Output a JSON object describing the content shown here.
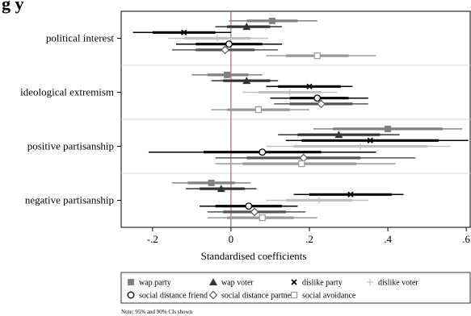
{
  "header_fragment": "g    y",
  "chart_data": {
    "type": "scatter",
    "title": "",
    "xlabel": "Standardised coefficients",
    "ylabel": "",
    "xlim": [
      -0.28,
      0.61
    ],
    "xticks": [
      -0.2,
      0,
      0.2,
      0.4,
      0.6
    ],
    "xtick_labels": [
      "-.2",
      "0",
      ".2",
      ".4",
      ".6"
    ],
    "reference_line": 0,
    "grid": false,
    "legend_position": "bottom",
    "categories": [
      "political interest",
      "ideological extremism",
      "positive partisanship",
      "negative partisanship"
    ],
    "series": [
      {
        "name": "wap party",
        "marker": "square",
        "color": "#808080",
        "points": [
          {
            "category": "political interest",
            "value": 0.105,
            "ci90": [
              0.04,
              0.17
            ],
            "ci95": [
              -0.005,
              0.22
            ]
          },
          {
            "category": "ideological extremism",
            "value": -0.01,
            "ci90": [
              -0.06,
              0.045
            ],
            "ci95": [
              -0.1,
              0.08
            ]
          },
          {
            "category": "positive partisanship",
            "value": 0.4,
            "ci90": [
              0.26,
              0.54
            ],
            "ci95": [
              0.21,
              0.59
            ]
          },
          {
            "category": "negative partisanship",
            "value": -0.05,
            "ci90": [
              -0.11,
              0.01
            ],
            "ci95": [
              -0.15,
              0.05
            ]
          }
        ]
      },
      {
        "name": "wap voter",
        "marker": "triangle",
        "color": "#333333",
        "points": [
          {
            "category": "political interest",
            "value": 0.04,
            "ci90": [
              -0.01,
              0.1
            ],
            "ci95": [
              -0.04,
              0.13
            ]
          },
          {
            "category": "ideological extremism",
            "value": 0.04,
            "ci90": [
              -0.02,
              0.1
            ],
            "ci95": [
              -0.05,
              0.12
            ]
          },
          {
            "category": "positive partisanship",
            "value": 0.275,
            "ci90": [
              0.17,
              0.38
            ],
            "ci95": [
              0.12,
              0.43
            ]
          },
          {
            "category": "negative partisanship",
            "value": -0.025,
            "ci90": [
              -0.08,
              0.035
            ],
            "ci95": [
              -0.115,
              0.065
            ]
          }
        ]
      },
      {
        "name": "dislike party",
        "marker": "x",
        "color": "#000000",
        "points": [
          {
            "category": "political interest",
            "value": -0.12,
            "ci90": [
              -0.2,
              -0.04
            ],
            "ci95": [
              -0.25,
              0.0
            ]
          },
          {
            "category": "ideological extremism",
            "value": 0.2,
            "ci90": [
              0.12,
              0.28
            ],
            "ci95": [
              0.09,
              0.31
            ]
          },
          {
            "category": "positive partisanship",
            "value": 0.355,
            "ci90": [
              0.18,
              0.53
            ],
            "ci95": [
              0.14,
              0.605
            ]
          },
          {
            "category": "negative partisanship",
            "value": 0.305,
            "ci90": [
              0.2,
              0.41
            ],
            "ci95": [
              0.16,
              0.44
            ]
          }
        ]
      },
      {
        "name": "dislike voter",
        "marker": "plus",
        "color": "#c0c0c0",
        "points": [
          {
            "category": "political interest",
            "value": -0.035,
            "ci90": [
              -0.12,
              0.05
            ],
            "ci95": [
              -0.16,
              0.095
            ]
          },
          {
            "category": "ideological extremism",
            "value": 0.15,
            "ci90": [
              0.07,
              0.23
            ],
            "ci95": [
              0.03,
              0.27
            ]
          },
          {
            "category": "positive partisanship",
            "value": 0.33,
            "ci90": [
              0.16,
              0.5
            ],
            "ci95": [
              0.09,
              0.56
            ]
          },
          {
            "category": "negative partisanship",
            "value": 0.225,
            "ci90": [
              0.14,
              0.31
            ],
            "ci95": [
              0.09,
              0.35
            ]
          }
        ]
      },
      {
        "name": "social distance friend",
        "marker": "circle",
        "color": "#000000",
        "points": [
          {
            "category": "political interest",
            "value": -0.005,
            "ci90": [
              -0.09,
              0.08
            ],
            "ci95": [
              -0.14,
              0.13
            ]
          },
          {
            "category": "ideological extremism",
            "value": 0.22,
            "ci90": [
              0.15,
              0.3
            ],
            "ci95": [
              0.1,
              0.35
            ]
          },
          {
            "category": "positive partisanship",
            "value": 0.08,
            "ci90": [
              -0.07,
              0.23
            ],
            "ci95": [
              -0.21,
              0.37
            ]
          },
          {
            "category": "negative partisanship",
            "value": 0.045,
            "ci90": [
              -0.04,
              0.13
            ],
            "ci95": [
              -0.08,
              0.17
            ]
          }
        ]
      },
      {
        "name": "social distance partner",
        "marker": "diamond",
        "color": "#555555",
        "points": [
          {
            "category": "political interest",
            "value": -0.015,
            "ci90": [
              -0.09,
              0.06
            ],
            "ci95": [
              -0.15,
              0.12
            ]
          },
          {
            "category": "ideological extremism",
            "value": 0.23,
            "ci90": [
              0.15,
              0.31
            ],
            "ci95": [
              0.11,
              0.35
            ]
          },
          {
            "category": "positive partisanship",
            "value": 0.185,
            "ci90": [
              0.04,
              0.33
            ],
            "ci95": [
              -0.04,
              0.47
            ]
          },
          {
            "category": "negative partisanship",
            "value": 0.06,
            "ci90": [
              -0.02,
              0.14
            ],
            "ci95": [
              -0.06,
              0.19
            ]
          }
        ]
      },
      {
        "name": "social avoidance",
        "marker": "open-square",
        "color": "#999999",
        "points": [
          {
            "category": "political interest",
            "value": 0.22,
            "ci90": [
              0.14,
              0.3
            ],
            "ci95": [
              0.09,
              0.37
            ]
          },
          {
            "category": "ideological extremism",
            "value": 0.07,
            "ci90": [
              -0.01,
              0.15
            ],
            "ci95": [
              -0.05,
              0.2
            ]
          },
          {
            "category": "positive partisanship",
            "value": 0.18,
            "ci90": [
              0.03,
              0.32
            ],
            "ci95": [
              -0.04,
              0.42
            ]
          },
          {
            "category": "negative partisanship",
            "value": 0.08,
            "ci90": [
              -0.01,
              0.16
            ],
            "ci95": [
              -0.06,
              0.22
            ]
          }
        ]
      }
    ],
    "note": "Note: 95% and 90% CIs shown"
  }
}
